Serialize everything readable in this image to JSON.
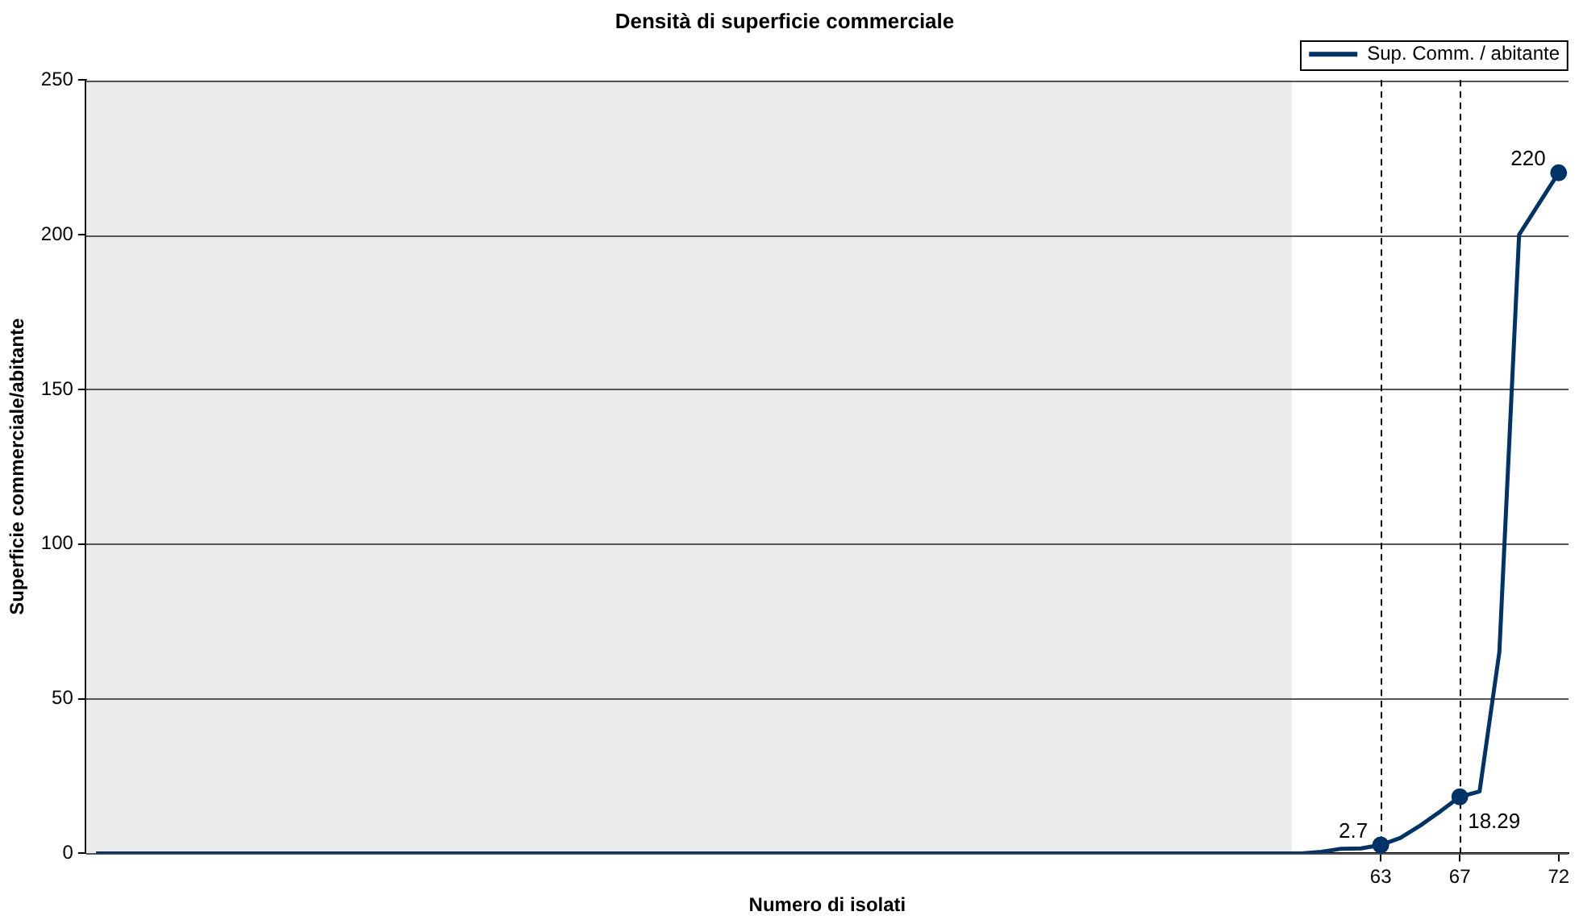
{
  "chart_data": {
    "type": "line",
    "title": "Densità di superficie commerciale",
    "xlabel": "Numero di isolati",
    "ylabel": "Superficie commerciale/abitante",
    "x": [
      -2,
      -1,
      0,
      1,
      2,
      3,
      4,
      5,
      6,
      7,
      8,
      9,
      10,
      11,
      12,
      13,
      14,
      15,
      16,
      17,
      18,
      19,
      20,
      21,
      22,
      23,
      24,
      25,
      26,
      27,
      28,
      29,
      30,
      31,
      32,
      33,
      34,
      35,
      36,
      37,
      38,
      39,
      40,
      41,
      42,
      43,
      44,
      45,
      46,
      47,
      48,
      49,
      50,
      51,
      52,
      53,
      54,
      55,
      56,
      57,
      58,
      59,
      60,
      61,
      62,
      63,
      64,
      65,
      66,
      67,
      68,
      69,
      70,
      71,
      72
    ],
    "series": [
      {
        "name": "Sup. Comm. / abitante",
        "color": "#003366",
        "values": [
          0,
          0,
          0,
          0,
          0,
          0,
          0,
          0,
          0,
          0,
          0,
          0,
          0,
          0,
          0,
          0,
          0,
          0,
          0,
          0,
          0,
          0,
          0,
          0,
          0,
          0,
          0,
          0,
          0,
          0,
          0,
          0,
          0,
          0,
          0,
          0,
          0,
          0,
          0,
          0,
          0,
          0,
          0,
          0,
          0,
          0,
          0,
          0,
          0,
          0,
          0,
          0,
          0,
          0,
          0,
          0,
          0,
          0,
          0,
          0,
          0,
          0,
          0.5,
          1.5,
          1.6,
          2.7,
          5,
          9,
          13.5,
          18.29,
          20,
          65,
          200,
          210,
          220
        ],
        "value_labels": [
          null,
          null,
          null,
          null,
          null,
          null,
          null,
          null,
          null,
          null,
          null,
          null,
          null,
          null,
          null,
          null,
          null,
          null,
          null,
          null,
          null,
          null,
          null,
          null,
          null,
          null,
          null,
          null,
          null,
          null,
          null,
          null,
          null,
          null,
          null,
          null,
          null,
          null,
          null,
          null,
          null,
          null,
          null,
          null,
          null,
          null,
          null,
          null,
          null,
          null,
          null,
          null,
          null,
          null,
          null,
          null,
          null,
          null,
          null,
          null,
          null,
          null,
          null,
          null,
          null,
          "2.7",
          null,
          null,
          null,
          "18.29",
          null,
          null,
          null,
          null,
          "220"
        ]
      }
    ],
    "xlim": [
      -2.5,
      72.5
    ],
    "xticks": [
      63,
      67,
      72
    ],
    "ylim": [
      0,
      250
    ],
    "yticks": [
      0,
      50,
      100,
      150,
      200,
      250
    ],
    "ref_lines": [
      {
        "axis": "x",
        "value": 63,
        "color": "#000000",
        "line_style": "dashed"
      },
      {
        "axis": "x",
        "value": 67,
        "color": "#000000",
        "line_style": "dashed"
      }
    ],
    "bands": [
      {
        "axis": "x",
        "from": -2.5,
        "to": 58.5,
        "color": "#ebebeb"
      }
    ],
    "grid": "y",
    "legend": "top right",
    "line_style": "solid"
  }
}
